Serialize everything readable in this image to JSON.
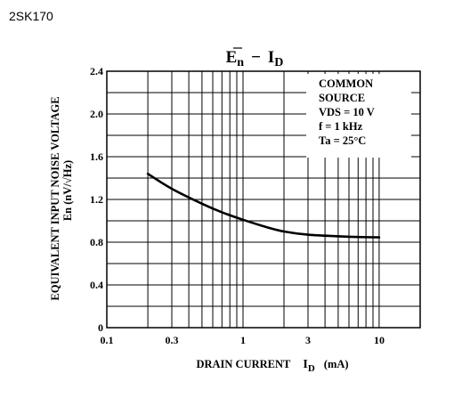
{
  "part_number": "2SK170",
  "chart_data": {
    "type": "line",
    "title": "En − ID",
    "title_main": "E",
    "title_sub_1": "n",
    "title_dash": "−",
    "title_main_2": "I",
    "title_sub_2": "D",
    "xlabel": "DRAIN CURRENT",
    "xlabel_symbol": "I",
    "xlabel_symbol_sub": "D",
    "xlabel_unit": "(mA)",
    "ylabel": "EQUIVALENT INPUT NOISE VOLTAGE",
    "ylabel_2": "En   (nV/√Hz)",
    "x_scale": "log",
    "xlim": [
      0.1,
      20
    ],
    "ylim": [
      0,
      2.4
    ],
    "grid": true,
    "x_ticks": [
      {
        "value": 0.1,
        "label": "0.1"
      },
      {
        "value": 0.3,
        "label": "0.3"
      },
      {
        "value": 1,
        "label": "1"
      },
      {
        "value": 3,
        "label": "3"
      },
      {
        "value": 10,
        "label": "10"
      }
    ],
    "y_ticks": [
      {
        "value": 0,
        "label": "0"
      },
      {
        "value": 0.4,
        "label": "0.4"
      },
      {
        "value": 0.8,
        "label": "0.8"
      },
      {
        "value": 1.2,
        "label": "1.2"
      },
      {
        "value": 1.6,
        "label": "1.6"
      },
      {
        "value": 2.0,
        "label": "2.0"
      },
      {
        "value": 2.4,
        "label": "2.4"
      }
    ],
    "annotation": [
      "COMMON",
      "SOURCE",
      "VDS = 10 V",
      "f = 1 kHz",
      "Ta = 25°C"
    ],
    "series": [
      {
        "x": [
          0.2,
          0.3,
          0.5,
          0.7,
          1.0,
          1.5,
          2.0,
          3.0,
          5.0,
          7.0,
          10.0
        ],
        "y": [
          1.44,
          1.3,
          1.16,
          1.08,
          1.01,
          0.94,
          0.9,
          0.87,
          0.855,
          0.848,
          0.845
        ]
      }
    ]
  }
}
